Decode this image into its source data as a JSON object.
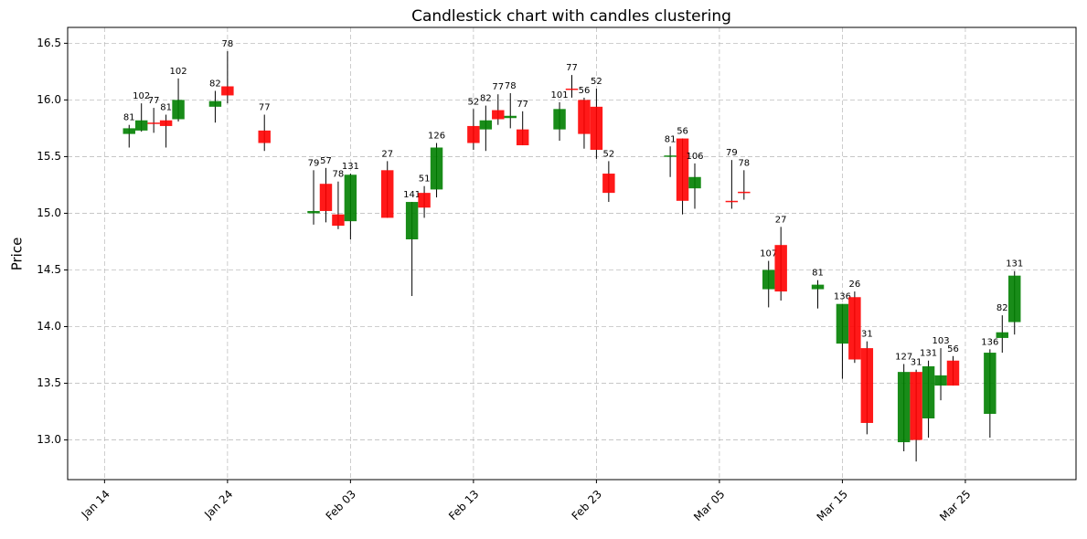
{
  "chart_data": {
    "type": "candlestick",
    "title": "Candlestick chart with candles clustering",
    "y_label": "Price",
    "x": [
      "Jan 16",
      "Jan 17",
      "Jan 18",
      "Jan 19",
      "Jan 20",
      "Jan 23",
      "Jan 24",
      "Jan 27",
      "Jan 31",
      "Feb 01",
      "Feb 02",
      "Feb 03",
      "Feb 06",
      "Feb 08",
      "Feb 09",
      "Feb 10",
      "Feb 13",
      "Feb 14",
      "Feb 15",
      "Feb 16",
      "Feb 17",
      "Feb 20",
      "Feb 21",
      "Feb 22",
      "Feb 23",
      "Feb 24",
      "Mar 01",
      "Mar 02",
      "Mar 03",
      "Mar 06",
      "Mar 07",
      "Mar 09",
      "Mar 10",
      "Mar 13",
      "Mar 15",
      "Mar 16",
      "Mar 17",
      "Mar 20",
      "Mar 21",
      "Mar 22",
      "Mar 23",
      "Mar 24",
      "Mar 27",
      "Mar 28",
      "Mar 29"
    ],
    "open": [
      15.7,
      15.73,
      15.8,
      15.82,
      15.83,
      15.94,
      16.12,
      15.73,
      15.0,
      15.26,
      14.99,
      14.93,
      15.38,
      14.77,
      15.18,
      15.21,
      15.77,
      15.74,
      15.91,
      15.84,
      15.74,
      15.74,
      16.1,
      16.0,
      15.94,
      15.35,
      15.5,
      15.66,
      15.22,
      15.11,
      15.19,
      14.33,
      14.72,
      14.33,
      13.85,
      14.26,
      13.81,
      12.98,
      13.6,
      13.19,
      13.48,
      13.7,
      13.23,
      13.9,
      14.04
    ],
    "high": [
      15.78,
      15.97,
      15.93,
      15.87,
      16.19,
      16.08,
      16.43,
      15.87,
      15.38,
      15.4,
      15.28,
      15.35,
      15.46,
      15.1,
      15.24,
      15.62,
      15.92,
      15.95,
      16.05,
      16.06,
      15.9,
      15.98,
      16.22,
      16.02,
      16.1,
      15.46,
      15.59,
      15.66,
      15.44,
      15.47,
      15.38,
      14.58,
      14.88,
      14.41,
      14.2,
      14.31,
      13.87,
      13.67,
      13.62,
      13.7,
      13.81,
      13.74,
      13.8,
      14.1,
      14.49
    ],
    "low": [
      15.58,
      15.72,
      15.71,
      15.58,
      15.81,
      15.8,
      15.97,
      15.55,
      14.9,
      14.92,
      14.86,
      14.77,
      14.96,
      14.27,
      14.96,
      15.14,
      15.56,
      15.55,
      15.78,
      15.75,
      15.6,
      15.64,
      16.02,
      15.57,
      15.48,
      15.1,
      15.32,
      14.99,
      15.04,
      15.04,
      15.12,
      14.17,
      14.23,
      14.16,
      13.54,
      13.68,
      13.05,
      12.9,
      12.81,
      13.02,
      13.35,
      13.48,
      13.02,
      13.77,
      13.93
    ],
    "close": [
      15.75,
      15.82,
      15.79,
      15.77,
      16.0,
      15.99,
      16.04,
      15.62,
      15.02,
      15.02,
      14.89,
      15.34,
      14.96,
      15.1,
      15.05,
      15.58,
      15.62,
      15.82,
      15.83,
      15.86,
      15.6,
      15.92,
      16.09,
      15.7,
      15.56,
      15.18,
      15.51,
      15.11,
      15.32,
      15.1,
      15.18,
      14.5,
      14.31,
      14.37,
      14.2,
      13.71,
      13.15,
      13.6,
      13.0,
      13.65,
      13.57,
      13.48,
      13.77,
      13.95,
      14.45
    ],
    "volume": [
      81,
      102,
      77,
      81,
      102,
      82,
      78,
      77,
      79,
      57,
      78,
      131,
      27,
      141,
      51,
      126,
      52,
      82,
      77,
      78,
      77,
      101,
      77,
      56,
      52,
      52,
      81,
      56,
      106,
      79,
      78,
      107,
      27,
      81,
      136,
      26,
      31,
      127,
      31,
      131,
      103,
      56,
      136,
      82,
      131
    ],
    "up_color": "#008000",
    "down_color": "#ff0000",
    "xlim": [
      "Jan 11",
      "Apr 03"
    ],
    "xticks": [
      "Jan 14",
      "Jan 24",
      "Feb 03",
      "Feb 13",
      "Feb 23",
      "Mar 05",
      "Mar 15",
      "Mar 25"
    ],
    "ylim": [
      12.65,
      16.64
    ],
    "yticks": [
      {
        "value": 13,
        "label": "13.0"
      },
      13.5,
      {
        "value": 14,
        "label": "14.0"
      },
      14.5,
      {
        "value": 15,
        "label": "15.0"
      },
      15.5,
      {
        "value": 16,
        "label": "16.0"
      },
      16.5
    ],
    "grid": true
  }
}
